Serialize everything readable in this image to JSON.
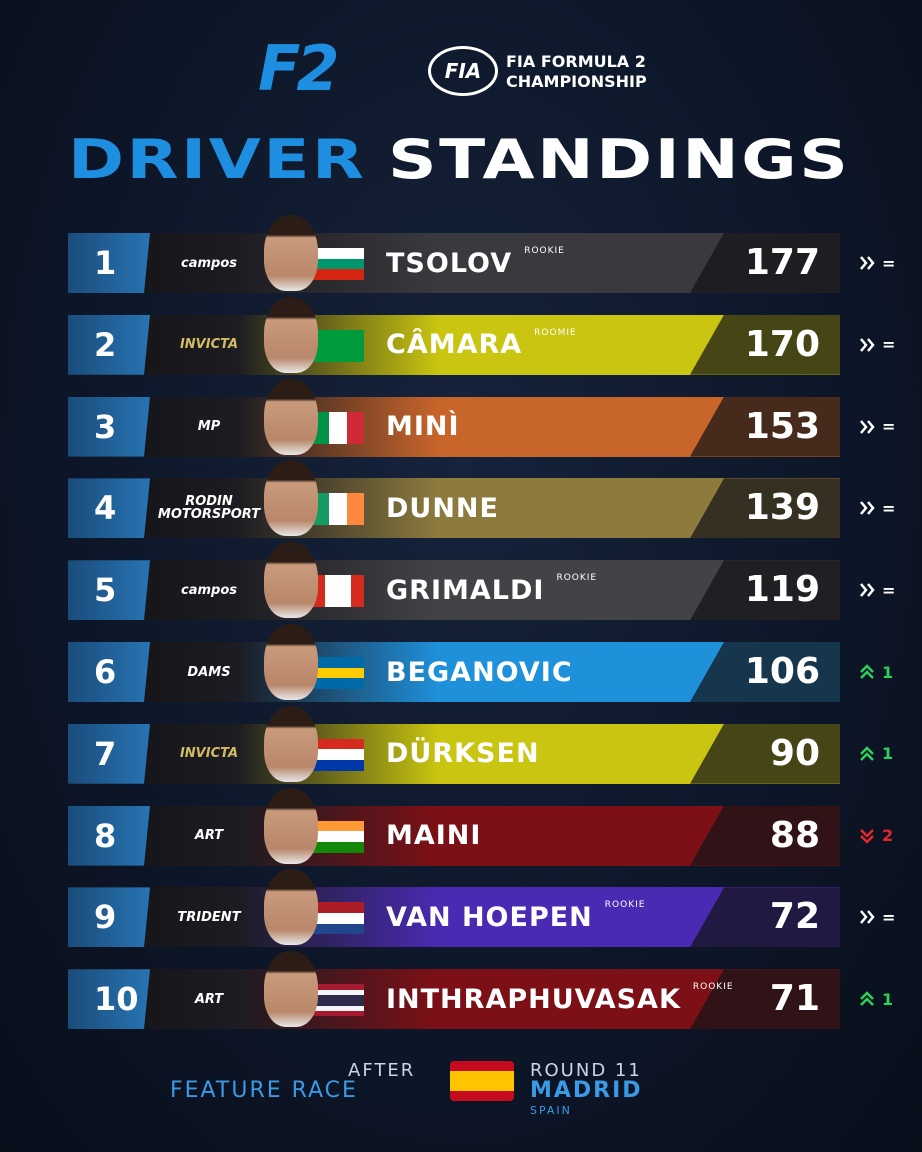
{
  "header": {
    "logo": "F2",
    "fia_badge": "FIA",
    "series_line1": "FIA FORMULA 2",
    "series_line2": "CHAMPIONSHIP",
    "title_part1": "DRIVER",
    "title_part2": "STANDINGS"
  },
  "table": {
    "rows": [
      {
        "position": 1,
        "team": "campos",
        "name": "TSOLOV",
        "tag": "ROOKIE",
        "points": 177,
        "change": "=",
        "trend": "same",
        "color": "#3a3a3e",
        "flag": {
          "dir": "h",
          "stripes": [
            "#ffffff",
            "#00966e",
            "#d62612"
          ]
        }
      },
      {
        "position": 2,
        "team": "INVICTA",
        "name": "CÂMARA",
        "tag": "ROOMIE",
        "points": 170,
        "change": "=",
        "trend": "same",
        "color": "#c9c510",
        "flag": {
          "dir": "h",
          "stripes": [
            "#009c3b"
          ]
        }
      },
      {
        "position": 3,
        "team": "MP",
        "name": "MINÌ",
        "points": 153,
        "change": "=",
        "trend": "same",
        "color": "#c8652a",
        "flag": {
          "dir": "v",
          "stripes": [
            "#009246",
            "#ffffff",
            "#ce2b37"
          ]
        }
      },
      {
        "position": 4,
        "team": "RODIN MOTORSPORT",
        "name": "DUNNE",
        "points": 139,
        "change": "=",
        "trend": "same",
        "color": "#8d7b3e",
        "flag": {
          "dir": "v",
          "stripes": [
            "#169b62",
            "#ffffff",
            "#ff883e"
          ]
        }
      },
      {
        "position": 5,
        "team": "campos",
        "name": "GRIMALDI",
        "tag": "ROOKIE",
        "points": 119,
        "change": "=",
        "trend": "same",
        "color": "#434347",
        "flag": {
          "dir": "v",
          "stripes": [
            "#d52b1e",
            "#ffffff",
            "#ffffff",
            "#d52b1e"
          ]
        }
      },
      {
        "position": 6,
        "team": "DAMS",
        "name": "BEGANOVIC",
        "points": 106,
        "change": "1",
        "trend": "up",
        "color": "#1f90da",
        "flag": {
          "dir": "h",
          "stripes": [
            "#006aa7",
            "#fecc00",
            "#006aa7"
          ]
        }
      },
      {
        "position": 7,
        "team": "INVICTA",
        "name": "DÜRKSEN",
        "points": 90,
        "change": "1",
        "trend": "up",
        "color": "#c9c510",
        "flag": {
          "dir": "h",
          "stripes": [
            "#d52b1e",
            "#ffffff",
            "#0038a8"
          ]
        }
      },
      {
        "position": 8,
        "team": "ART",
        "name": "MAINI",
        "points": 88,
        "change": "2",
        "trend": "down",
        "color": "#7c1016",
        "flag": {
          "dir": "h",
          "stripes": [
            "#ff9933",
            "#ffffff",
            "#138808"
          ]
        }
      },
      {
        "position": 9,
        "team": "TRIDENT",
        "name": "VAN HOEPEN",
        "tag": "ROOKIE",
        "points": 72,
        "change": "=",
        "trend": "same",
        "color": "#4a2ab2",
        "flag": {
          "dir": "h",
          "stripes": [
            "#ae1c28",
            "#ffffff",
            "#21468b"
          ]
        }
      },
      {
        "position": 10,
        "team": "ART",
        "name": "INTHRAPHUVASAK",
        "tag": "ROOKIE",
        "points": 71,
        "change": "1",
        "trend": "up",
        "color": "#7c1016",
        "flag": {
          "dir": "h",
          "stripes": [
            "#a51931",
            "#f4f5f8",
            "#2d2a4a",
            "#2d2a4a",
            "#f4f5f8",
            "#a51931"
          ]
        }
      }
    ]
  },
  "footer": {
    "after": "AFTER",
    "session": "FEATURE RACE",
    "round": "ROUND 11",
    "city": "MADRID",
    "country": "SPAIN"
  }
}
